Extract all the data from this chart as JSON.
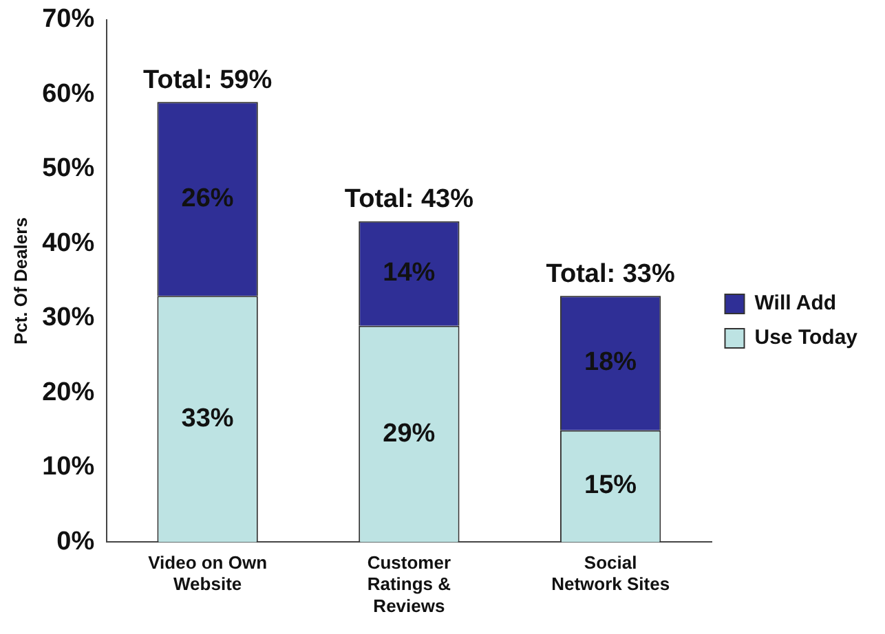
{
  "chart_data": {
    "type": "bar",
    "stacked": true,
    "ylabel": "Pct. Of Dealers",
    "categories": [
      "Video on Own Website",
      "Customer Ratings & Reviews",
      "Social Network Sites"
    ],
    "series": [
      {
        "name": "Use Today",
        "color": "#bde3e3",
        "values": [
          33,
          29,
          15
        ],
        "value_labels": [
          "33%",
          "29%",
          "15%"
        ]
      },
      {
        "name": "Will Add",
        "color": "#2f2f96",
        "values": [
          26,
          14,
          18
        ],
        "value_labels": [
          "26%",
          "14%",
          "18%"
        ]
      }
    ],
    "totals": [
      "Total: 59%",
      "Total: 43%",
      "Total: 33%"
    ],
    "ylim": [
      0,
      70
    ],
    "yticks": [
      {
        "value": 0,
        "label": "0%"
      },
      {
        "value": 10,
        "label": "10%"
      },
      {
        "value": 20,
        "label": "20%"
      },
      {
        "value": 30,
        "label": "30%"
      },
      {
        "value": 40,
        "label": "40%"
      },
      {
        "value": 50,
        "label": "50%"
      },
      {
        "value": 60,
        "label": "60%"
      },
      {
        "value": 70,
        "label": "70%"
      }
    ],
    "grid": false,
    "legend": "right"
  }
}
